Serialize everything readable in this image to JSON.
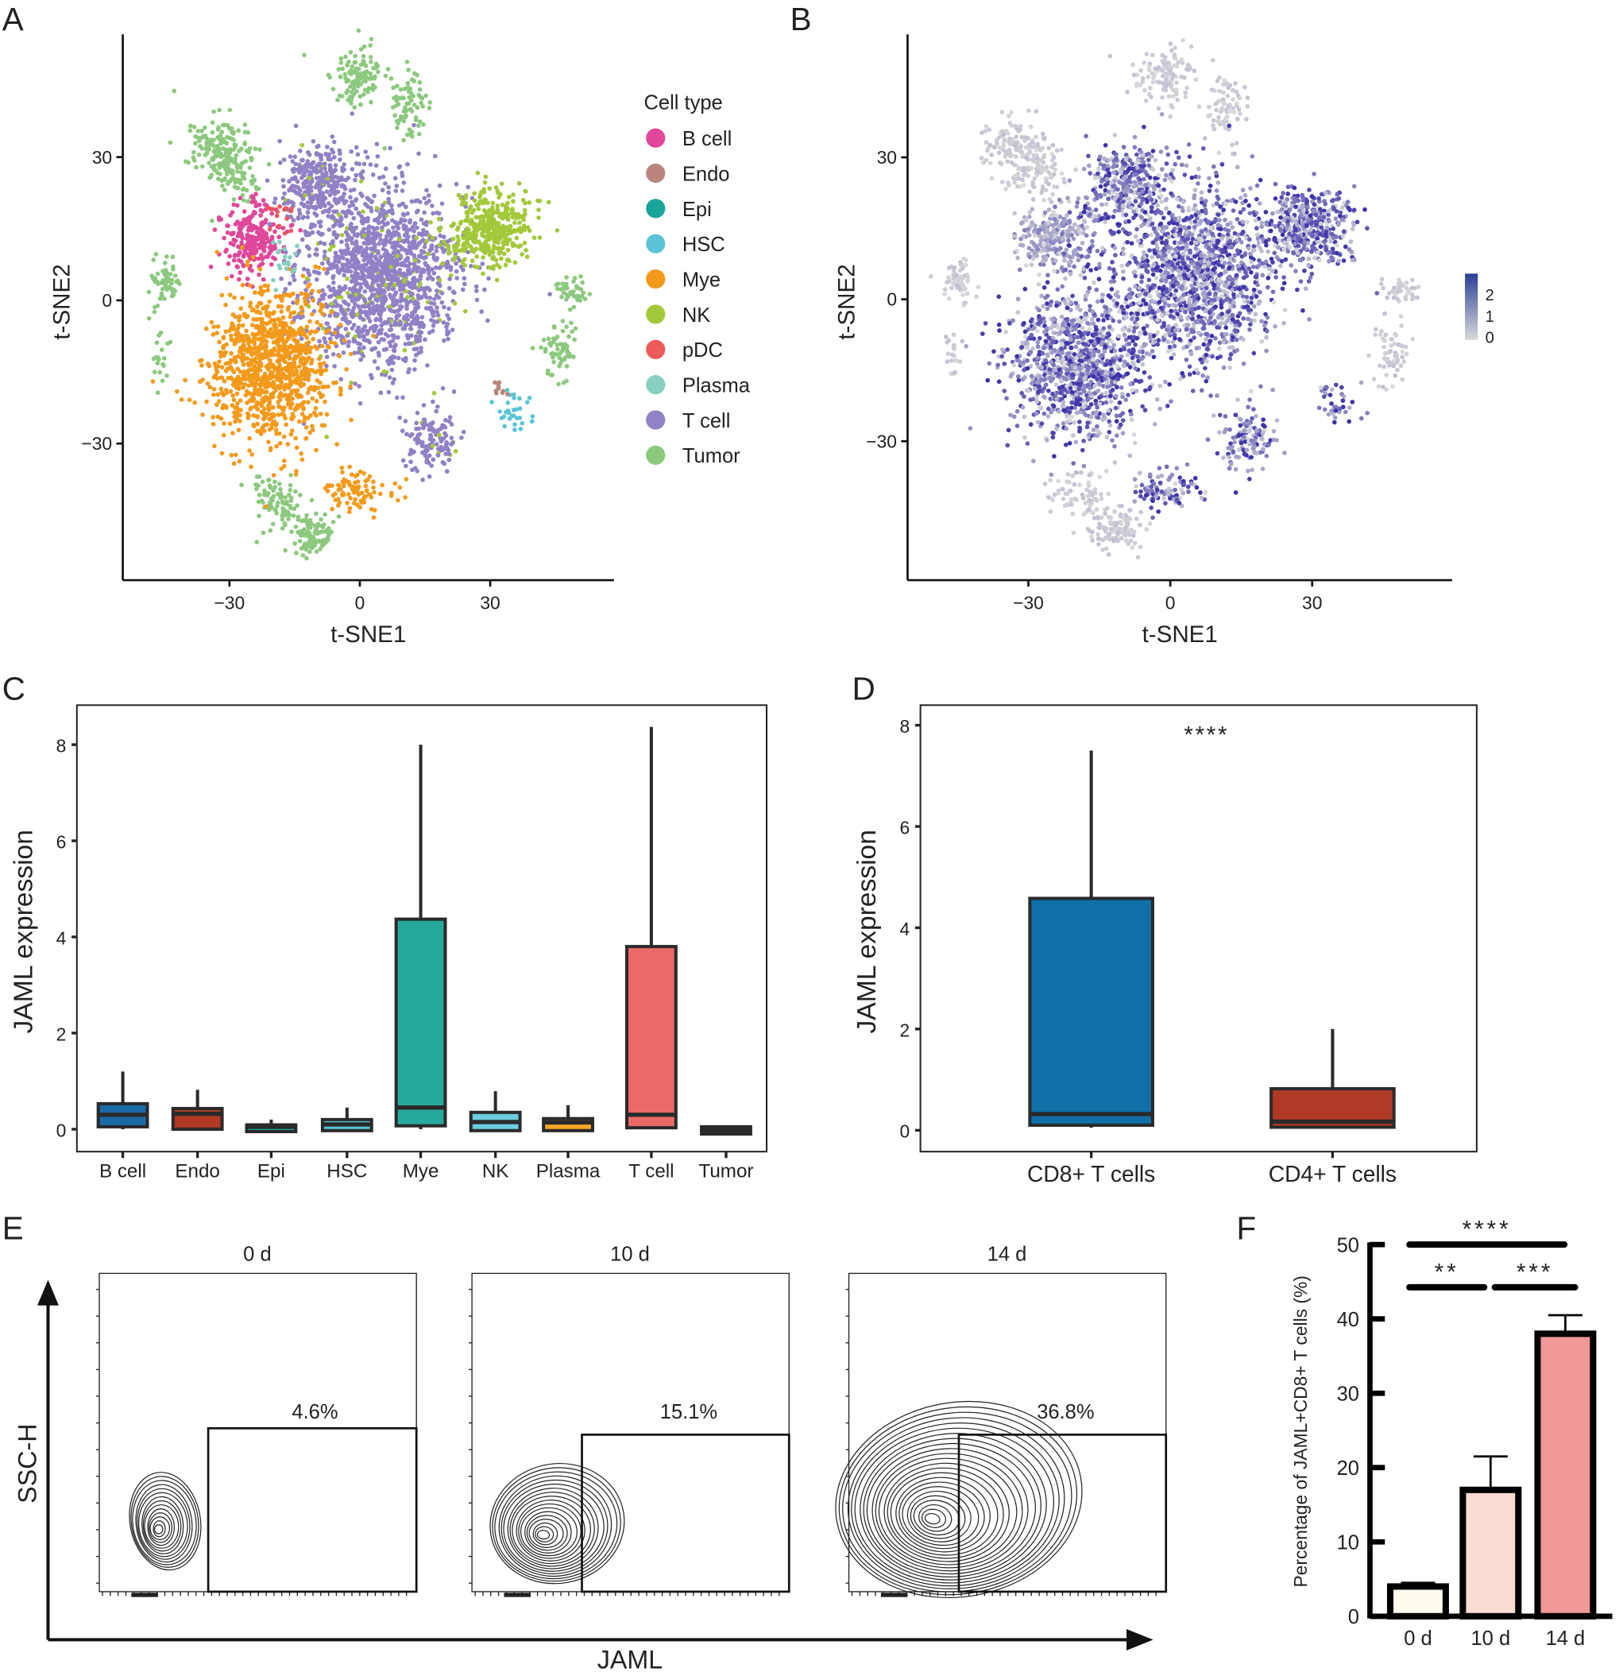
{
  "panels": {
    "A": "A",
    "B": "B",
    "C": "C",
    "D": "D",
    "E": "E",
    "F": "F"
  },
  "chart_data": [
    {
      "panel": "A",
      "type": "scatter",
      "xlabel": "t-SNE1",
      "ylabel": "t-SNE2",
      "xticks": [
        -30,
        0,
        30
      ],
      "yticks": [
        30,
        0,
        -30
      ],
      "xlim": [
        -55,
        58
      ],
      "ylim": [
        -58,
        55
      ],
      "legend_title": "Cell type",
      "legend_position": "right",
      "legend": [
        {
          "name": "B cell",
          "color": "#e0479a"
        },
        {
          "name": "Endo",
          "color": "#b9857d"
        },
        {
          "name": "Epi",
          "color": "#1aa59a"
        },
        {
          "name": "HSC",
          "color": "#5bc4d8"
        },
        {
          "name": "Mye",
          "color": "#f39a1c"
        },
        {
          "name": "NK",
          "color": "#a3c93a"
        },
        {
          "name": "pDC",
          "color": "#ec5a5a"
        },
        {
          "name": "Plasma",
          "color": "#88cfc0"
        },
        {
          "name": "T cell",
          "color": "#9181c6"
        },
        {
          "name": "Tumor",
          "color": "#8cc97e"
        }
      ],
      "clusters": [
        {
          "type": "Tumor",
          "x": -0.5,
          "y": 47,
          "sx": 3,
          "sy": 3,
          "n": 120
        },
        {
          "type": "Tumor",
          "x": 12,
          "y": 41,
          "sx": 2.5,
          "sy": 4,
          "n": 70
        },
        {
          "type": "Tumor",
          "x": -31,
          "y": 30,
          "sx": 5,
          "sy": 3,
          "n": 220,
          "rot": -0.8
        },
        {
          "type": "Tumor",
          "x": -45,
          "y": 4,
          "sx": 1.8,
          "sy": 2.5,
          "n": 60
        },
        {
          "type": "Tumor",
          "x": 49,
          "y": 2,
          "sx": 2,
          "sy": 1.5,
          "n": 40
        },
        {
          "type": "Tumor",
          "x": 46,
          "y": -11,
          "sx": 2,
          "sy": 3,
          "n": 60
        },
        {
          "type": "Tumor",
          "x": -19,
          "y": -42,
          "sx": 3,
          "sy": 3,
          "n": 80
        },
        {
          "type": "Tumor",
          "x": -11,
          "y": -49,
          "sx": 2.5,
          "sy": 2,
          "n": 100
        },
        {
          "type": "Tumor",
          "x": -46,
          "y": -12,
          "sx": 1,
          "sy": 3,
          "n": 20
        },
        {
          "type": "B cell",
          "x": -25,
          "y": 13,
          "sx": 3.5,
          "sy": 3.5,
          "n": 250
        },
        {
          "type": "T cell",
          "x": 5,
          "y": 5,
          "sx": 9,
          "sy": 10,
          "n": 1500
        },
        {
          "type": "T cell",
          "x": -10,
          "y": 24,
          "sx": 4,
          "sy": 4,
          "n": 300
        },
        {
          "type": "T cell",
          "x": 16,
          "y": -30,
          "sx": 3,
          "sy": 3,
          "n": 120
        },
        {
          "type": "NK",
          "x": 30,
          "y": 15,
          "sx": 5,
          "sy": 4,
          "n": 400
        },
        {
          "type": "Mye",
          "x": -20,
          "y": -14,
          "sx": 7,
          "sy": 8,
          "n": 1000
        },
        {
          "type": "Mye",
          "x": -1,
          "y": -40,
          "sx": 4,
          "sy": 2,
          "n": 90
        },
        {
          "type": "HSC",
          "x": 36,
          "y": -23,
          "sx": 2,
          "sy": 2,
          "n": 30
        },
        {
          "type": "Endo",
          "x": 32,
          "y": -19,
          "sx": 1,
          "sy": 1,
          "n": 10
        },
        {
          "type": "Plasma",
          "x": -18,
          "y": 8,
          "sx": 2,
          "sy": 2,
          "n": 20
        },
        {
          "type": "pDC",
          "x": -18,
          "y": 18,
          "sx": 2,
          "sy": 2,
          "n": 15
        }
      ]
    },
    {
      "panel": "B",
      "type": "scatter",
      "xlabel": "t-SNE1",
      "ylabel": "t-SNE2",
      "xticks": [
        -30,
        0,
        30
      ],
      "yticks": [
        30,
        0,
        -30
      ],
      "colorbar": {
        "ticks": [
          "2",
          "1",
          "0"
        ],
        "low": "#d9d9d9",
        "high": "#2c3e96"
      }
    },
    {
      "panel": "C",
      "type": "box",
      "ylabel": "JAML expression",
      "yticks": [
        0,
        2,
        4,
        6,
        8
      ],
      "ylim": [
        -0.5,
        8.8
      ],
      "categories": [
        "B cell",
        "Endo",
        "Epi",
        "HSC",
        "Mye",
        "NK",
        "Plasma",
        "T cell",
        "Tumor"
      ],
      "colors": [
        "#1a6aa8",
        "#b03a26",
        "#1aa59a",
        "#5bc4d8",
        "#26a99c",
        "#6ccde0",
        "#f5a623",
        "#ec6969",
        "#333333"
      ],
      "boxes": [
        {
          "low": 0,
          "q1": 0.05,
          "median": 0.3,
          "q3": 0.53,
          "high": 1.2
        },
        {
          "low": -0.02,
          "q1": 0,
          "median": 0.32,
          "q3": 0.43,
          "high": 0.82
        },
        {
          "low": -0.05,
          "q1": -0.05,
          "median": 0.05,
          "q3": 0.09,
          "high": 0.2
        },
        {
          "low": -0.03,
          "q1": -0.03,
          "median": 0.1,
          "q3": 0.2,
          "high": 0.45
        },
        {
          "low": 0,
          "q1": 0.07,
          "median": 0.45,
          "q3": 4.37,
          "high": 8.0
        },
        {
          "low": -0.03,
          "q1": -0.03,
          "median": 0.15,
          "q3": 0.35,
          "high": 0.79
        },
        {
          "low": -0.03,
          "q1": -0.03,
          "median": 0.14,
          "q3": 0.22,
          "high": 0.5
        },
        {
          "low": 0,
          "q1": 0.03,
          "median": 0.3,
          "q3": 3.8,
          "high": 8.37
        },
        {
          "low": -0.1,
          "q1": -0.1,
          "median": -0.02,
          "q3": 0.05,
          "high": 0.07
        }
      ]
    },
    {
      "panel": "D",
      "type": "box",
      "ylabel": "JAML expression",
      "yticks": [
        0,
        2,
        4,
        6,
        8
      ],
      "ylim": [
        -0.3,
        8.4
      ],
      "categories": [
        "CD8+ T cells",
        "CD4+ T cells"
      ],
      "colors": [
        "#1170a8",
        "#b03a26"
      ],
      "boxes": [
        {
          "low": 0.05,
          "q1": 0.1,
          "median": 0.32,
          "q3": 4.58,
          "high": 7.5
        },
        {
          "low": 0.05,
          "q1": 0.06,
          "median": 0.17,
          "q3": 0.82,
          "high": 2.0
        }
      ],
      "annotation": "****"
    },
    {
      "panel": "E",
      "type": "contour",
      "xlabel": "JAML",
      "ylabel": "SSC-H",
      "plots": [
        {
          "title": "0 d",
          "gate_percent": "4.6%"
        },
        {
          "title": "10 d",
          "gate_percent": "15.1%"
        },
        {
          "title": "14 d",
          "gate_percent": "36.8%"
        }
      ]
    },
    {
      "panel": "F",
      "type": "bar",
      "ylabel": "Percentage of JAML+CD8+ T cells (%)",
      "yticks": [
        0,
        10,
        20,
        30,
        40,
        50
      ],
      "ylim": [
        0,
        50
      ],
      "categories": [
        "0 d",
        "10 d",
        "14 d"
      ],
      "values": [
        4,
        17,
        38
      ],
      "error": [
        0.5,
        4.5,
        2.5
      ],
      "colors": [
        "#fffaf0",
        "#fadcd5",
        "#f09898"
      ],
      "significance": [
        {
          "from": 0,
          "to": 2,
          "label": "****"
        },
        {
          "from": 0,
          "to": 1,
          "label": "**"
        },
        {
          "from": 1,
          "to": 2,
          "label": "***"
        }
      ]
    }
  ]
}
